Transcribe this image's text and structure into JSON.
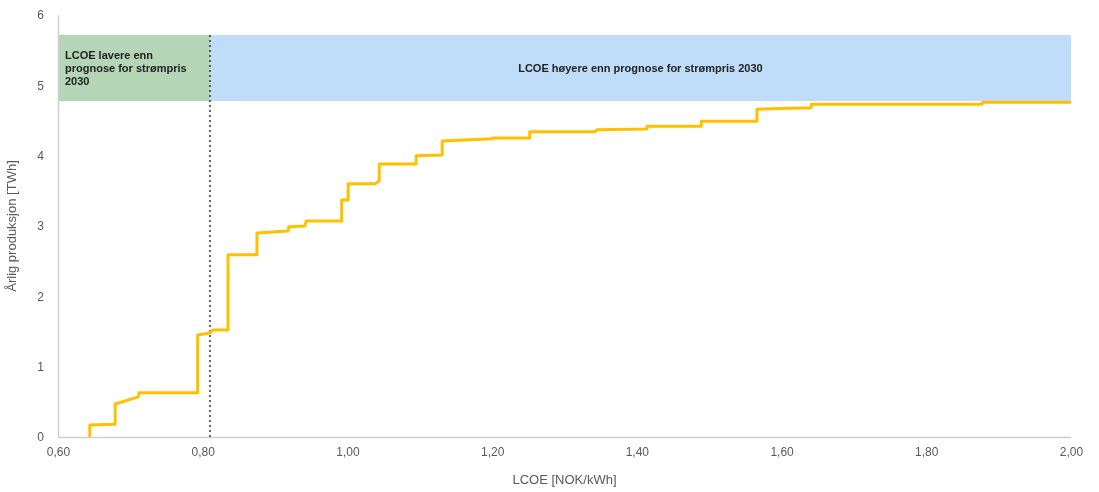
{
  "chart_data": {
    "type": "line",
    "xlabel": "LCOE [NOK/kWh]",
    "ylabel": "Årlig produksjon [TWh]",
    "xlim": [
      0.6,
      2.0
    ],
    "ylim": [
      0,
      6
    ],
    "xticks": [
      {
        "value": 0.6,
        "label": "0,60"
      },
      {
        "value": 0.8,
        "label": "0,80"
      },
      {
        "value": 1.0,
        "label": "1,00"
      },
      {
        "value": 1.2,
        "label": "1,20"
      },
      {
        "value": 1.4,
        "label": "1,40"
      },
      {
        "value": 1.6,
        "label": "1,60"
      },
      {
        "value": 1.8,
        "label": "1,80"
      },
      {
        "value": 2.0,
        "label": "2,00"
      }
    ],
    "yticks": [
      0,
      1,
      2,
      3,
      4,
      5,
      6
    ],
    "grid": false,
    "line_style": "solid",
    "marker": "none",
    "series": [
      {
        "color": "#ffc000",
        "x": [
          0.644,
          0.644,
          0.679,
          0.679,
          0.711,
          0.712,
          0.793,
          0.793,
          0.81,
          0.814,
          0.835,
          0.835,
          0.875,
          0.875,
          0.918,
          0.919,
          0.941,
          0.943,
          0.992,
          0.992,
          1.001,
          1.001,
          1.038,
          1.044,
          1.044,
          1.095,
          1.095,
          1.131,
          1.131,
          1.2,
          1.201,
          1.252,
          1.252,
          1.342,
          1.345,
          1.414,
          1.414,
          1.489,
          1.489,
          1.566,
          1.566,
          1.641,
          1.641,
          1.877,
          1.878,
          2.0
        ],
        "values": [
          0,
          0.17,
          0.18,
          0.47,
          0.57,
          0.63,
          0.63,
          1.45,
          1.48,
          1.52,
          1.52,
          2.59,
          2.59,
          2.9,
          2.93,
          2.99,
          3.0,
          3.07,
          3.07,
          3.37,
          3.37,
          3.6,
          3.6,
          3.64,
          3.88,
          3.88,
          4.0,
          4.01,
          4.21,
          4.24,
          4.25,
          4.25,
          4.34,
          4.34,
          4.37,
          4.38,
          4.42,
          4.42,
          4.49,
          4.49,
          4.66,
          4.68,
          4.73,
          4.73,
          4.76,
          4.76
        ]
      }
    ],
    "bands": [
      {
        "axis": "x",
        "from": 0.6,
        "to": 0.81,
        "label": "LCOE lavere enn prognose for strømpris 2030",
        "color": "#b4d5b6"
      },
      {
        "axis": "x",
        "from": 0.81,
        "to": 2.0,
        "label": "LCOE høyere enn prognose for strømpris 2030",
        "color": "#bfdcf8"
      }
    ],
    "ref_lines": [
      {
        "axis": "x",
        "value": 0.81,
        "color": "#333333",
        "line_style": "dotted"
      }
    ]
  }
}
